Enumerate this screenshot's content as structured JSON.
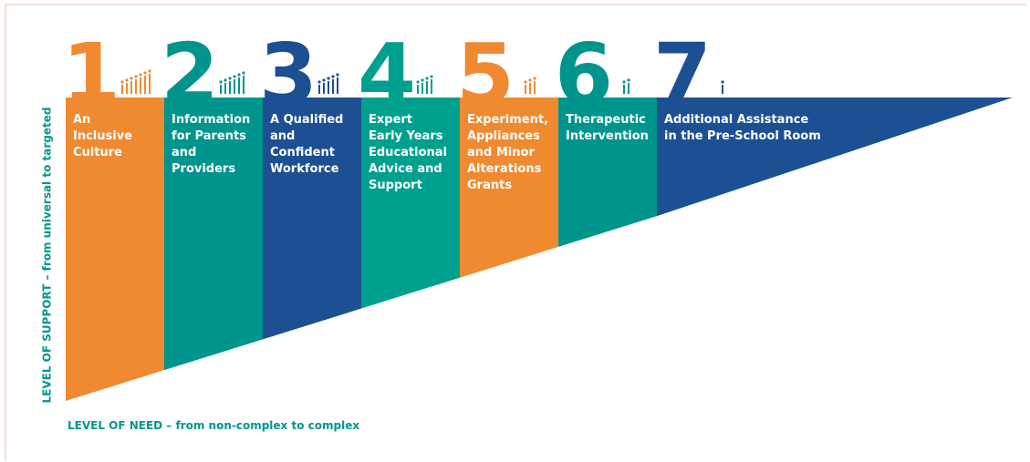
{
  "diagram": {
    "y_axis_label": "LEVEL OF SUPPORT – from universal to targeted",
    "x_axis_label": "LEVEL OF NEED – from non-complex to complex",
    "steps": [
      {
        "number": "1",
        "label_lines": [
          "An",
          "Inclusive",
          "Culture"
        ],
        "color": "#f08a30"
      },
      {
        "number": "2",
        "label_lines": [
          "Information",
          "for Parents",
          "and",
          "Providers"
        ],
        "color": "#00958c"
      },
      {
        "number": "3",
        "label_lines": [
          "A Qualified",
          "and",
          "Confident",
          "Workforce"
        ],
        "color": "#1d4f93"
      },
      {
        "number": "4",
        "label_lines": [
          "Expert",
          "Early Years",
          "Educational",
          "Advice and",
          "Support"
        ],
        "color": "#00a08e"
      },
      {
        "number": "5",
        "label_lines": [
          "Experiment,",
          "Appliances",
          "and Minor",
          "Alterations",
          "Grants"
        ],
        "color": "#f08a30"
      },
      {
        "number": "6",
        "label_lines": [
          "Therapeutic",
          "Intervention"
        ],
        "color": "#00958c"
      },
      {
        "number": "7",
        "label_lines": [
          "Additional Assistance",
          "in the Pre-School Room"
        ],
        "color": "#1d4f93"
      }
    ]
  }
}
